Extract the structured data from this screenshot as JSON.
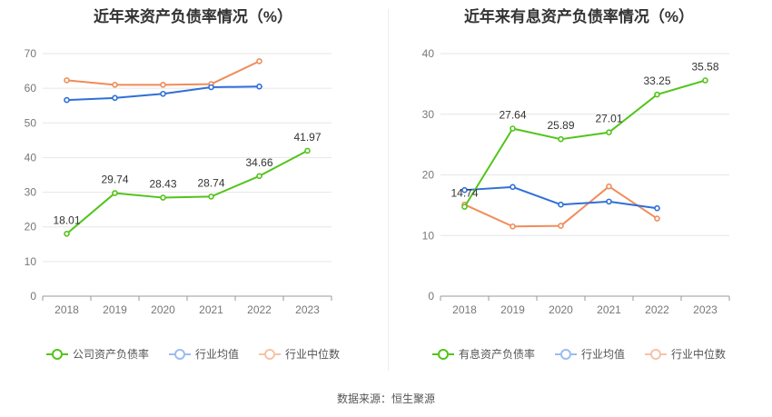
{
  "charts": [
    {
      "title": "近年来资产负债率情况（%）",
      "legend": [
        {
          "label": "公司资产负债率",
          "color": "#52c41a"
        },
        {
          "label": "行业均值",
          "color": "#2f6fd8"
        },
        {
          "label": "行业中位数",
          "color": "#f08c5a"
        }
      ]
    },
    {
      "title": "近年来有息资产负债率情况（%）",
      "legend": [
        {
          "label": "有息资产负债率",
          "color": "#52c41a"
        },
        {
          "label": "行业均值",
          "color": "#2f6fd8"
        },
        {
          "label": "行业中位数",
          "color": "#f08c5a"
        }
      ]
    }
  ],
  "source": "数据来源：恒生聚源",
  "chart_data": [
    {
      "type": "line",
      "title": "近年来资产负债率情况（%）",
      "categories": [
        "2018",
        "2019",
        "2020",
        "2021",
        "2022",
        "2023"
      ],
      "ylim": [
        0,
        70
      ],
      "yticks": [
        0,
        10,
        20,
        30,
        40,
        50,
        60,
        70
      ],
      "grid": true,
      "legend_position": "bottom",
      "series": [
        {
          "name": "公司资产负债率",
          "color": "#52c41a",
          "values": [
            18.01,
            29.74,
            28.43,
            28.74,
            34.66,
            41.97
          ],
          "labels": [
            "18.01",
            "29.74",
            "28.43",
            "28.74",
            "34.66",
            "41.97"
          ]
        },
        {
          "name": "行业均值",
          "color": "#2f6fd8",
          "values": [
            56.6,
            57.2,
            58.4,
            60.3,
            60.5,
            null
          ]
        },
        {
          "name": "行业中位数",
          "color": "#f08c5a",
          "values": [
            62.3,
            61.0,
            61.0,
            61.2,
            67.8,
            null
          ]
        }
      ]
    },
    {
      "type": "line",
      "title": "近年来有息资产负债率情况（%）",
      "categories": [
        "2018",
        "2019",
        "2020",
        "2021",
        "2022",
        "2023"
      ],
      "ylim": [
        0,
        40
      ],
      "yticks": [
        0,
        10,
        20,
        30,
        40
      ],
      "grid": true,
      "legend_position": "bottom",
      "series": [
        {
          "name": "有息资产负债率",
          "color": "#52c41a",
          "values": [
            14.74,
            27.64,
            25.89,
            27.01,
            33.25,
            35.58
          ],
          "labels": [
            "14.74",
            "27.64",
            "25.89",
            "27.01",
            "33.25",
            "35.58"
          ]
        },
        {
          "name": "行业均值",
          "color": "#2f6fd8",
          "values": [
            17.5,
            18.0,
            15.1,
            15.6,
            14.5,
            null
          ]
        },
        {
          "name": "行业中位数",
          "color": "#f08c5a",
          "values": [
            15.1,
            11.5,
            11.6,
            18.1,
            12.8,
            null
          ]
        }
      ]
    }
  ]
}
